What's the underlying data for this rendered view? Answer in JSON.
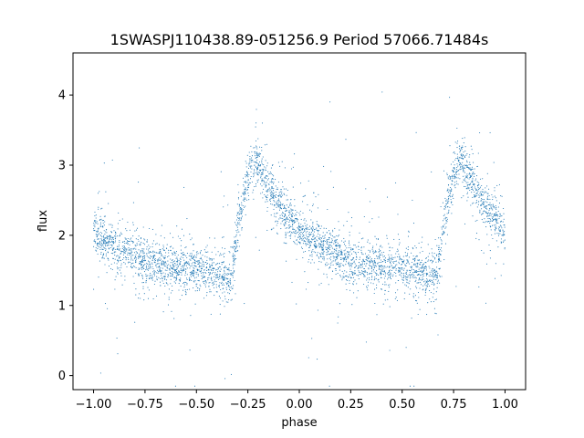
{
  "chart_data": {
    "type": "scatter",
    "title": "1SWASPJ110438.89-051256.9 Period 57066.71484s",
    "xlabel": "phase",
    "ylabel": "flux",
    "xlim": [
      -1.1,
      1.1
    ],
    "ylim": [
      -0.2,
      4.6
    ],
    "xticks": [
      -1.0,
      -0.75,
      -0.5,
      -0.25,
      0.0,
      0.25,
      0.5,
      0.75,
      1.0
    ],
    "xtick_labels": [
      "−1.00",
      "−0.75",
      "−0.50",
      "−0.25",
      "0.00",
      "0.25",
      "0.50",
      "0.75",
      "1.00"
    ],
    "yticks": [
      0,
      1,
      2,
      3,
      4
    ],
    "ytick_labels": [
      "0",
      "1",
      "2",
      "3",
      "4"
    ],
    "grid": false,
    "legend": "none",
    "marker_color": "#1f77b4",
    "series": [
      {
        "phase_range": [
          -1.0,
          1.0
        ],
        "trend_phase": [
          -1.0,
          -0.9,
          -0.8,
          -0.7,
          -0.6,
          -0.5,
          -0.4,
          -0.33,
          -0.3,
          -0.26,
          -0.22,
          -0.2,
          -0.15,
          -0.1,
          0.0,
          0.1,
          0.2,
          0.3,
          0.4,
          0.5,
          0.6,
          0.67,
          0.7,
          0.74,
          0.78,
          0.8,
          0.85,
          0.9,
          1.0
        ],
        "trend_flux": [
          2.05,
          1.85,
          1.7,
          1.6,
          1.55,
          1.5,
          1.45,
          1.4,
          2.1,
          2.7,
          3.1,
          3.0,
          2.7,
          2.45,
          2.05,
          1.85,
          1.7,
          1.6,
          1.55,
          1.5,
          1.45,
          1.4,
          2.1,
          2.7,
          3.1,
          3.0,
          2.7,
          2.45,
          2.05
        ]
      }
    ]
  }
}
